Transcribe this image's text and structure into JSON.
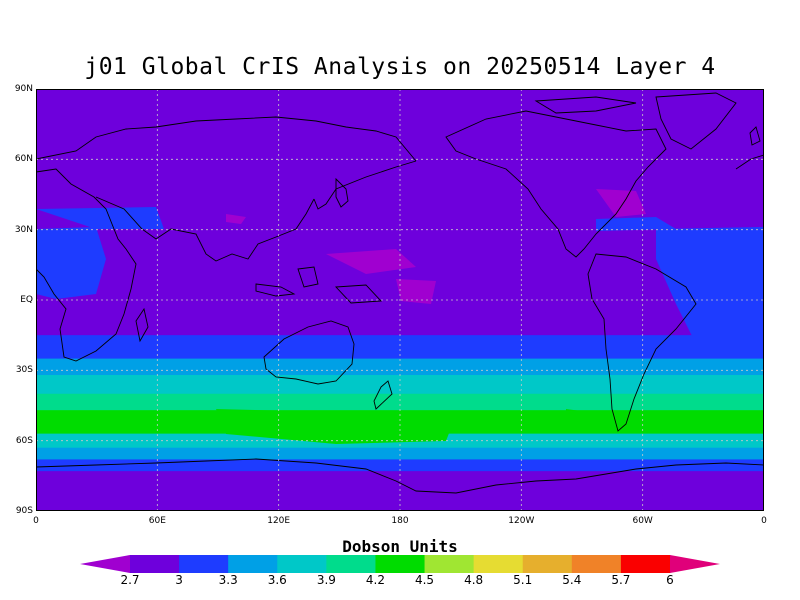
{
  "title": "j01 Global CrIS Analysis on 20250514 Layer 4",
  "axes": {
    "lat_labels": [
      "90N",
      "60N",
      "30N",
      "EQ",
      "30S",
      "60S",
      "90S"
    ],
    "lon_labels": [
      "0",
      "60E",
      "120E",
      "180",
      "120W",
      "60W",
      "0"
    ]
  },
  "colorbar": {
    "title": "Dobson Units",
    "ticks": [
      "2.7",
      "3",
      "3.3",
      "3.6",
      "3.9",
      "4.2",
      "4.5",
      "4.8",
      "5.1",
      "5.4",
      "5.7",
      "6"
    ],
    "colors": [
      "#a000d0",
      "#6e00dc",
      "#1e3cff",
      "#00a0e6",
      "#00c8c8",
      "#00dc8c",
      "#00dc00",
      "#a0e632",
      "#e6dc32",
      "#e6af2d",
      "#f08228",
      "#fa0000",
      "#e0007a"
    ]
  },
  "map_data": {
    "lat_range": [
      -90,
      90
    ],
    "lon_range": [
      0,
      360
    ],
    "grid": true,
    "bands": [
      {
        "lat_from": 90,
        "lat_to": 60,
        "value": 2.7
      },
      {
        "lat_from": 60,
        "lat_to": 35,
        "value": 2.7
      },
      {
        "lat_from": 35,
        "lat_to": 27,
        "value": 2.9
      },
      {
        "lat_from": 27,
        "lat_to": -15,
        "value": 2.9
      },
      {
        "lat_from": -15,
        "lat_to": -25,
        "value": 3.1
      },
      {
        "lat_from": -25,
        "lat_to": -32,
        "value": 3.4
      },
      {
        "lat_from": -32,
        "lat_to": -40,
        "value": 3.7
      },
      {
        "lat_from": -40,
        "lat_to": -47,
        "value": 4.0
      },
      {
        "lat_from": -47,
        "lat_to": -57,
        "value": 4.3
      },
      {
        "lat_from": -57,
        "lat_to": -63,
        "value": 3.7
      },
      {
        "lat_from": -63,
        "lat_to": -68,
        "value": 3.3
      },
      {
        "lat_from": -68,
        "lat_to": -73,
        "value": 3.0
      },
      {
        "lat_from": -73,
        "lat_to": -90,
        "value": 2.7
      }
    ]
  }
}
